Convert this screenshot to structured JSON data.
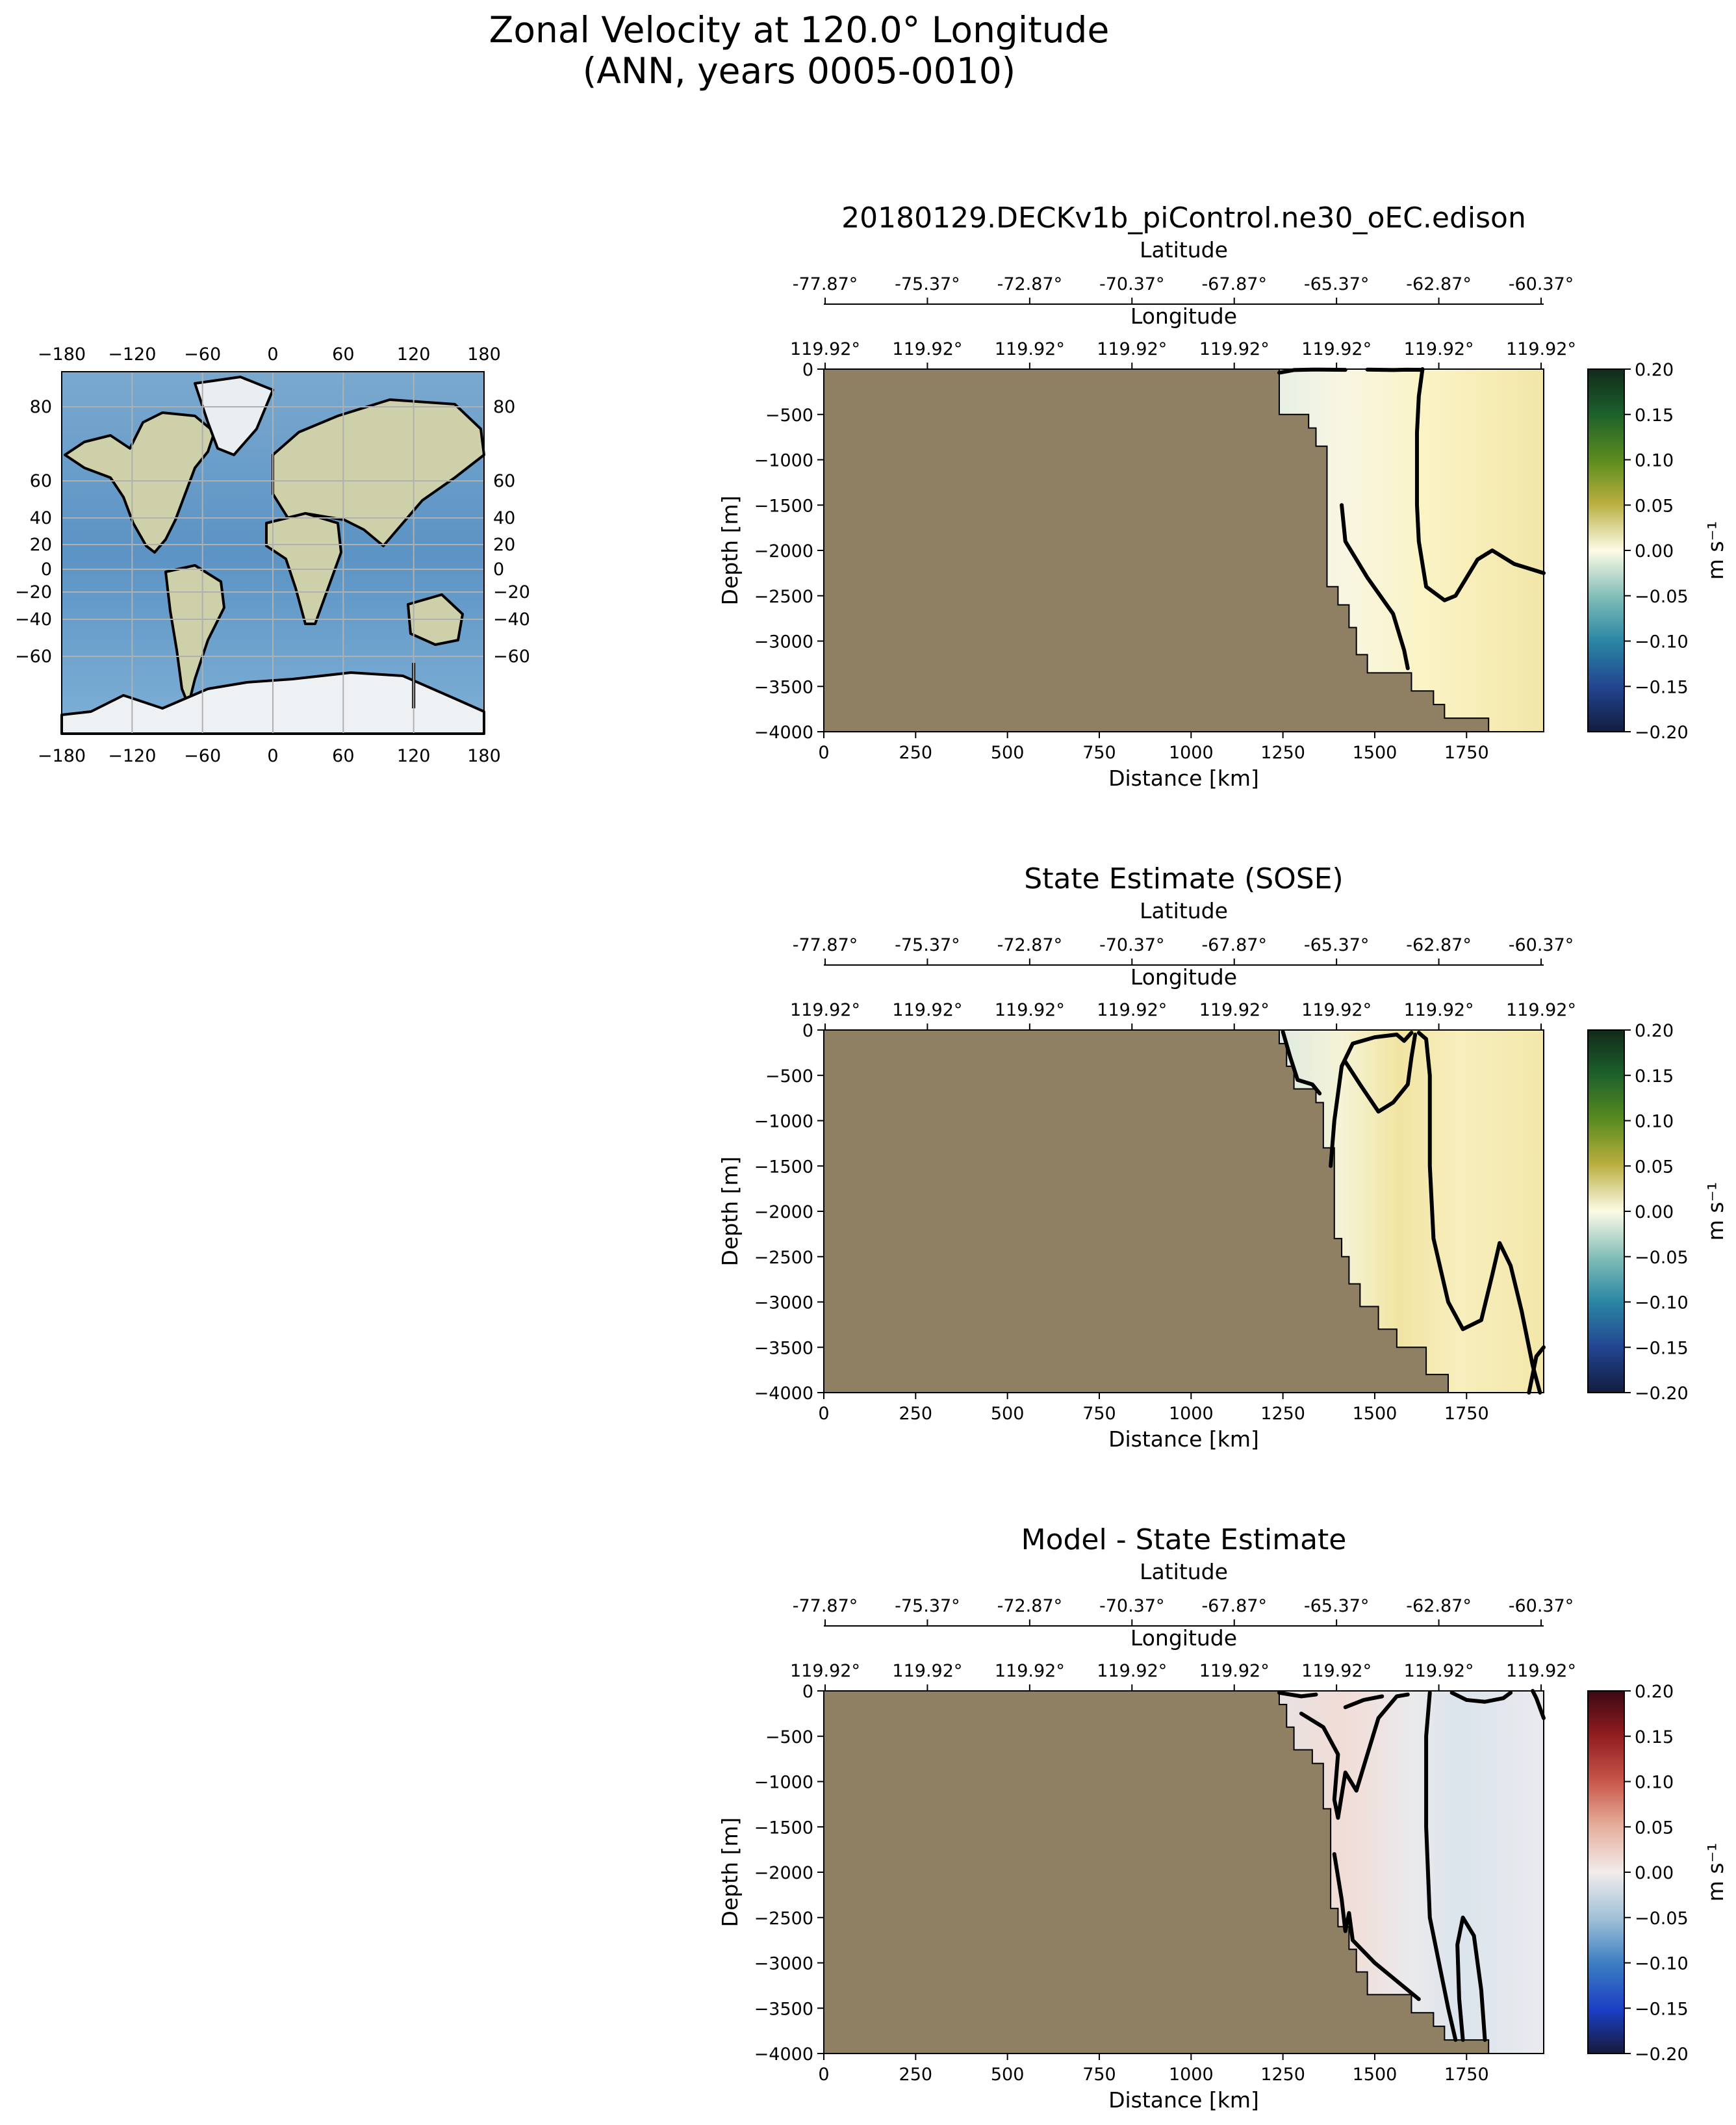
{
  "suptitle": [
    "Zonal Velocity at 120.0° Longitude",
    "(ANN, years 0005-0010)"
  ],
  "map": {
    "x_ticks": [
      "−180",
      "−120",
      "−60",
      "0",
      "60",
      "120",
      "180"
    ],
    "x_tick_values": [
      -180,
      -120,
      -60,
      0,
      60,
      120,
      180
    ],
    "y_ticks": [
      "80",
      "60",
      "40",
      "20",
      "0",
      "−20",
      "−40",
      "−60"
    ],
    "y_tick_values": [
      80,
      60,
      40,
      20,
      0,
      -20,
      -40,
      -60
    ],
    "transect_longitude": 120.0
  },
  "colors": {
    "land": "#8f8063",
    "axis": "#000000",
    "contour": "#000000",
    "grid": "#b0b0b0"
  },
  "chart_data": [
    {
      "type": "heatmap",
      "title": "20180129.DECKv1b_piControl.ne30_oEC.edison",
      "xlabel": "Distance [km]",
      "ylabel": "Depth [m]",
      "xlim": [
        0,
        1960
      ],
      "ylim": [
        -4000,
        0
      ],
      "x_ticks": [
        0,
        250,
        500,
        750,
        1000,
        1250,
        1500,
        1750
      ],
      "y_ticks": [
        0,
        -500,
        -1000,
        -1500,
        -2000,
        -2500,
        -3000,
        -3500,
        -4000
      ],
      "lat_label": "Latitude",
      "lat_ticks": [
        "-77.87°",
        "-75.37°",
        "-72.87°",
        "-70.37°",
        "-67.87°",
        "-65.37°",
        "-62.87°",
        "-60.37°"
      ],
      "lon_label": "Longitude",
      "lon_ticks": [
        "119.92°",
        "119.92°",
        "119.92°",
        "119.92°",
        "119.92°",
        "119.92°",
        "119.92°",
        "119.92°"
      ],
      "colorbar": {
        "cmap": "delta",
        "label": "m s⁻¹",
        "vmin": -0.2,
        "vmax": 0.2,
        "ticks": [
          "0.20",
          "0.15",
          "0.10",
          "0.05",
          "0.00",
          "−0.05",
          "−0.10",
          "−0.15",
          "−0.20"
        ],
        "tick_values": [
          0.2,
          0.15,
          0.1,
          0.05,
          0.0,
          -0.05,
          -0.1,
          -0.15,
          -0.2
        ]
      },
      "bathymetry": [
        [
          1240,
          0
        ],
        [
          1240,
          -500
        ],
        [
          1320,
          -500
        ],
        [
          1320,
          -650
        ],
        [
          1340,
          -650
        ],
        [
          1340,
          -850
        ],
        [
          1370,
          -850
        ],
        [
          1370,
          -2400
        ],
        [
          1400,
          -2400
        ],
        [
          1400,
          -2600
        ],
        [
          1430,
          -2600
        ],
        [
          1430,
          -2850
        ],
        [
          1450,
          -2850
        ],
        [
          1450,
          -3150
        ],
        [
          1480,
          -3150
        ],
        [
          1480,
          -3350
        ],
        [
          1600,
          -3350
        ],
        [
          1600,
          -3550
        ],
        [
          1660,
          -3550
        ],
        [
          1660,
          -3700
        ],
        [
          1690,
          -3700
        ],
        [
          1690,
          -3850
        ],
        [
          1810,
          -3850
        ],
        [
          1810,
          -4000
        ]
      ],
      "contours_zero": [
        [
          [
            1240,
            -40
          ],
          [
            1280,
            -10
          ],
          [
            1330,
            -5
          ],
          [
            1420,
            -8
          ]
        ],
        [
          [
            1590,
            -3300
          ],
          [
            1580,
            -3100
          ],
          [
            1550,
            -2700
          ],
          [
            1480,
            -2300
          ],
          [
            1420,
            -1900
          ],
          [
            1410,
            -1500
          ]
        ],
        [
          [
            1480,
            -5
          ],
          [
            1550,
            -10
          ],
          [
            1590,
            -6
          ],
          [
            1630,
            -8
          ]
        ],
        [
          [
            1630,
            0
          ],
          [
            1620,
            -300
          ],
          [
            1615,
            -700
          ],
          [
            1615,
            -1500
          ],
          [
            1620,
            -1900
          ],
          [
            1640,
            -2400
          ],
          [
            1690,
            -2550
          ],
          [
            1720,
            -2500
          ],
          [
            1780,
            -2100
          ],
          [
            1820,
            -2000
          ],
          [
            1880,
            -2150
          ],
          [
            1960,
            -2250
          ]
        ]
      ],
      "field_samples": {
        "distance_km": [
          1300,
          1500,
          1700,
          1900
        ],
        "velocity_surface_m_s": [
          -0.02,
          0.0,
          0.03,
          0.04
        ],
        "velocity_deep_m_s": [
          0.0,
          0.005,
          0.015,
          0.02
        ]
      }
    },
    {
      "type": "heatmap",
      "title": "State Estimate (SOSE)",
      "xlabel": "Distance [km]",
      "ylabel": "Depth [m]",
      "xlim": [
        0,
        1960
      ],
      "ylim": [
        -4000,
        0
      ],
      "x_ticks": [
        0,
        250,
        500,
        750,
        1000,
        1250,
        1500,
        1750
      ],
      "y_ticks": [
        0,
        -500,
        -1000,
        -1500,
        -2000,
        -2500,
        -3000,
        -3500,
        -4000
      ],
      "lat_label": "Latitude",
      "lat_ticks": [
        "-77.87°",
        "-75.37°",
        "-72.87°",
        "-70.37°",
        "-67.87°",
        "-65.37°",
        "-62.87°",
        "-60.37°"
      ],
      "lon_label": "Longitude",
      "lon_ticks": [
        "119.92°",
        "119.92°",
        "119.92°",
        "119.92°",
        "119.92°",
        "119.92°",
        "119.92°",
        "119.92°"
      ],
      "colorbar": {
        "cmap": "delta",
        "label": "m s⁻¹",
        "vmin": -0.2,
        "vmax": 0.2,
        "ticks": [
          "0.20",
          "0.15",
          "0.10",
          "0.05",
          "0.00",
          "−0.05",
          "−0.10",
          "−0.15",
          "−0.20"
        ],
        "tick_values": [
          0.2,
          0.15,
          0.1,
          0.05,
          0.0,
          -0.05,
          -0.1,
          -0.15,
          -0.2
        ]
      },
      "bathymetry": [
        [
          1240,
          0
        ],
        [
          1240,
          -150
        ],
        [
          1260,
          -150
        ],
        [
          1260,
          -400
        ],
        [
          1280,
          -400
        ],
        [
          1280,
          -650
        ],
        [
          1340,
          -650
        ],
        [
          1340,
          -800
        ],
        [
          1360,
          -800
        ],
        [
          1360,
          -1300
        ],
        [
          1390,
          -1300
        ],
        [
          1390,
          -2300
        ],
        [
          1410,
          -2300
        ],
        [
          1410,
          -2500
        ],
        [
          1430,
          -2500
        ],
        [
          1430,
          -2800
        ],
        [
          1460,
          -2800
        ],
        [
          1460,
          -3050
        ],
        [
          1510,
          -3050
        ],
        [
          1510,
          -3300
        ],
        [
          1560,
          -3300
        ],
        [
          1560,
          -3500
        ],
        [
          1640,
          -3500
        ],
        [
          1640,
          -3800
        ],
        [
          1700,
          -3800
        ],
        [
          1700,
          -4000
        ]
      ],
      "contours_zero": [
        [
          [
            1250,
            -20
          ],
          [
            1270,
            -300
          ],
          [
            1290,
            -550
          ],
          [
            1330,
            -600
          ],
          [
            1350,
            -700
          ]
        ],
        [
          [
            1380,
            -1500
          ],
          [
            1390,
            -1000
          ],
          [
            1410,
            -400
          ],
          [
            1440,
            -150
          ],
          [
            1500,
            -80
          ],
          [
            1560,
            -50
          ],
          [
            1580,
            -120
          ],
          [
            1600,
            -30
          ]
        ],
        [
          [
            1420,
            -350
          ],
          [
            1460,
            -600
          ],
          [
            1510,
            -900
          ],
          [
            1550,
            -800
          ],
          [
            1590,
            -600
          ],
          [
            1600,
            -300
          ],
          [
            1610,
            -50
          ]
        ],
        [
          [
            1620,
            -30
          ],
          [
            1640,
            -100
          ],
          [
            1650,
            -500
          ],
          [
            1650,
            -1500
          ],
          [
            1660,
            -2300
          ],
          [
            1700,
            -3000
          ],
          [
            1740,
            -3300
          ],
          [
            1790,
            -3200
          ],
          [
            1820,
            -2700
          ],
          [
            1840,
            -2350
          ],
          [
            1870,
            -2600
          ],
          [
            1900,
            -3100
          ],
          [
            1930,
            -3700
          ],
          [
            1950,
            -4000
          ]
        ],
        [
          [
            1960,
            -3500
          ],
          [
            1940,
            -3600
          ],
          [
            1920,
            -4000
          ]
        ]
      ],
      "field_samples": {
        "distance_km": [
          1300,
          1500,
          1700,
          1900
        ],
        "velocity_surface_m_s": [
          -0.03,
          0.02,
          0.05,
          0.04
        ],
        "velocity_deep_m_s": [
          -0.01,
          0.0,
          0.015,
          0.02
        ]
      }
    },
    {
      "type": "heatmap",
      "title": "Model - State Estimate",
      "xlabel": "Distance [km]",
      "ylabel": "Depth [m]",
      "xlim": [
        0,
        1960
      ],
      "ylim": [
        -4000,
        0
      ],
      "x_ticks": [
        0,
        250,
        500,
        750,
        1000,
        1250,
        1500,
        1750
      ],
      "y_ticks": [
        0,
        -500,
        -1000,
        -1500,
        -2000,
        -2500,
        -3000,
        -3500,
        -4000
      ],
      "lat_label": "Latitude",
      "lat_ticks": [
        "-77.87°",
        "-75.37°",
        "-72.87°",
        "-70.37°",
        "-67.87°",
        "-65.37°",
        "-62.87°",
        "-60.37°"
      ],
      "lon_label": "Longitude",
      "lon_ticks": [
        "119.92°",
        "119.92°",
        "119.92°",
        "119.92°",
        "119.92°",
        "119.92°",
        "119.92°",
        "119.92°"
      ],
      "colorbar": {
        "cmap": "balance",
        "label": "m s⁻¹",
        "vmin": -0.2,
        "vmax": 0.2,
        "ticks": [
          "0.20",
          "0.15",
          "0.10",
          "0.05",
          "0.00",
          "−0.05",
          "−0.10",
          "−0.15",
          "−0.20"
        ],
        "tick_values": [
          0.2,
          0.15,
          0.1,
          0.05,
          0.0,
          -0.05,
          -0.1,
          -0.15,
          -0.2
        ]
      },
      "bathymetry": [
        [
          1240,
          0
        ],
        [
          1240,
          -150
        ],
        [
          1260,
          -150
        ],
        [
          1260,
          -400
        ],
        [
          1280,
          -400
        ],
        [
          1280,
          -650
        ],
        [
          1330,
          -650
        ],
        [
          1330,
          -800
        ],
        [
          1360,
          -800
        ],
        [
          1360,
          -1300
        ],
        [
          1380,
          -1300
        ],
        [
          1380,
          -2400
        ],
        [
          1400,
          -2400
        ],
        [
          1400,
          -2600
        ],
        [
          1430,
          -2600
        ],
        [
          1430,
          -2850
        ],
        [
          1450,
          -2850
        ],
        [
          1450,
          -3100
        ],
        [
          1480,
          -3100
        ],
        [
          1480,
          -3350
        ],
        [
          1600,
          -3350
        ],
        [
          1600,
          -3550
        ],
        [
          1660,
          -3550
        ],
        [
          1660,
          -3700
        ],
        [
          1690,
          -3700
        ],
        [
          1690,
          -3850
        ],
        [
          1810,
          -3850
        ],
        [
          1810,
          -4000
        ]
      ],
      "contours_zero": [
        [
          [
            1240,
            -20
          ],
          [
            1300,
            -60
          ],
          [
            1340,
            -40
          ]
        ],
        [
          [
            1300,
            -250
          ],
          [
            1360,
            -400
          ],
          [
            1400,
            -700
          ],
          [
            1390,
            -1200
          ],
          [
            1400,
            -1400
          ],
          [
            1420,
            -900
          ],
          [
            1450,
            -1100
          ],
          [
            1480,
            -700
          ],
          [
            1510,
            -300
          ],
          [
            1560,
            -60
          ],
          [
            1590,
            -40
          ]
        ],
        [
          [
            1420,
            -180
          ],
          [
            1470,
            -100
          ],
          [
            1520,
            -60
          ]
        ],
        [
          [
            1390,
            -1800
          ],
          [
            1410,
            -2300
          ],
          [
            1420,
            -2650
          ],
          [
            1430,
            -2450
          ],
          [
            1440,
            -2750
          ],
          [
            1500,
            -3000
          ],
          [
            1560,
            -3200
          ],
          [
            1620,
            -3400
          ]
        ],
        [
          [
            1650,
            -20
          ],
          [
            1640,
            -500
          ],
          [
            1640,
            -1500
          ],
          [
            1650,
            -2500
          ],
          [
            1680,
            -3100
          ],
          [
            1700,
            -3500
          ],
          [
            1720,
            -3850
          ]
        ],
        [
          [
            1740,
            -3850
          ],
          [
            1730,
            -3400
          ],
          [
            1725,
            -2800
          ],
          [
            1740,
            -2500
          ],
          [
            1770,
            -2700
          ],
          [
            1790,
            -3300
          ],
          [
            1800,
            -3850
          ]
        ],
        [
          [
            1710,
            -20
          ],
          [
            1750,
            -100
          ],
          [
            1800,
            -120
          ],
          [
            1850,
            -80
          ],
          [
            1870,
            -20
          ]
        ],
        [
          [
            1930,
            0
          ],
          [
            1940,
            -80
          ],
          [
            1960,
            -300
          ]
        ]
      ],
      "field_samples": {
        "distance_km": [
          1300,
          1500,
          1700,
          1900
        ],
        "velocity_surface_m_s": [
          -0.01,
          0.02,
          -0.02,
          -0.02
        ],
        "velocity_deep_m_s": [
          0.005,
          0.02,
          0.0,
          -0.01
        ]
      }
    }
  ]
}
